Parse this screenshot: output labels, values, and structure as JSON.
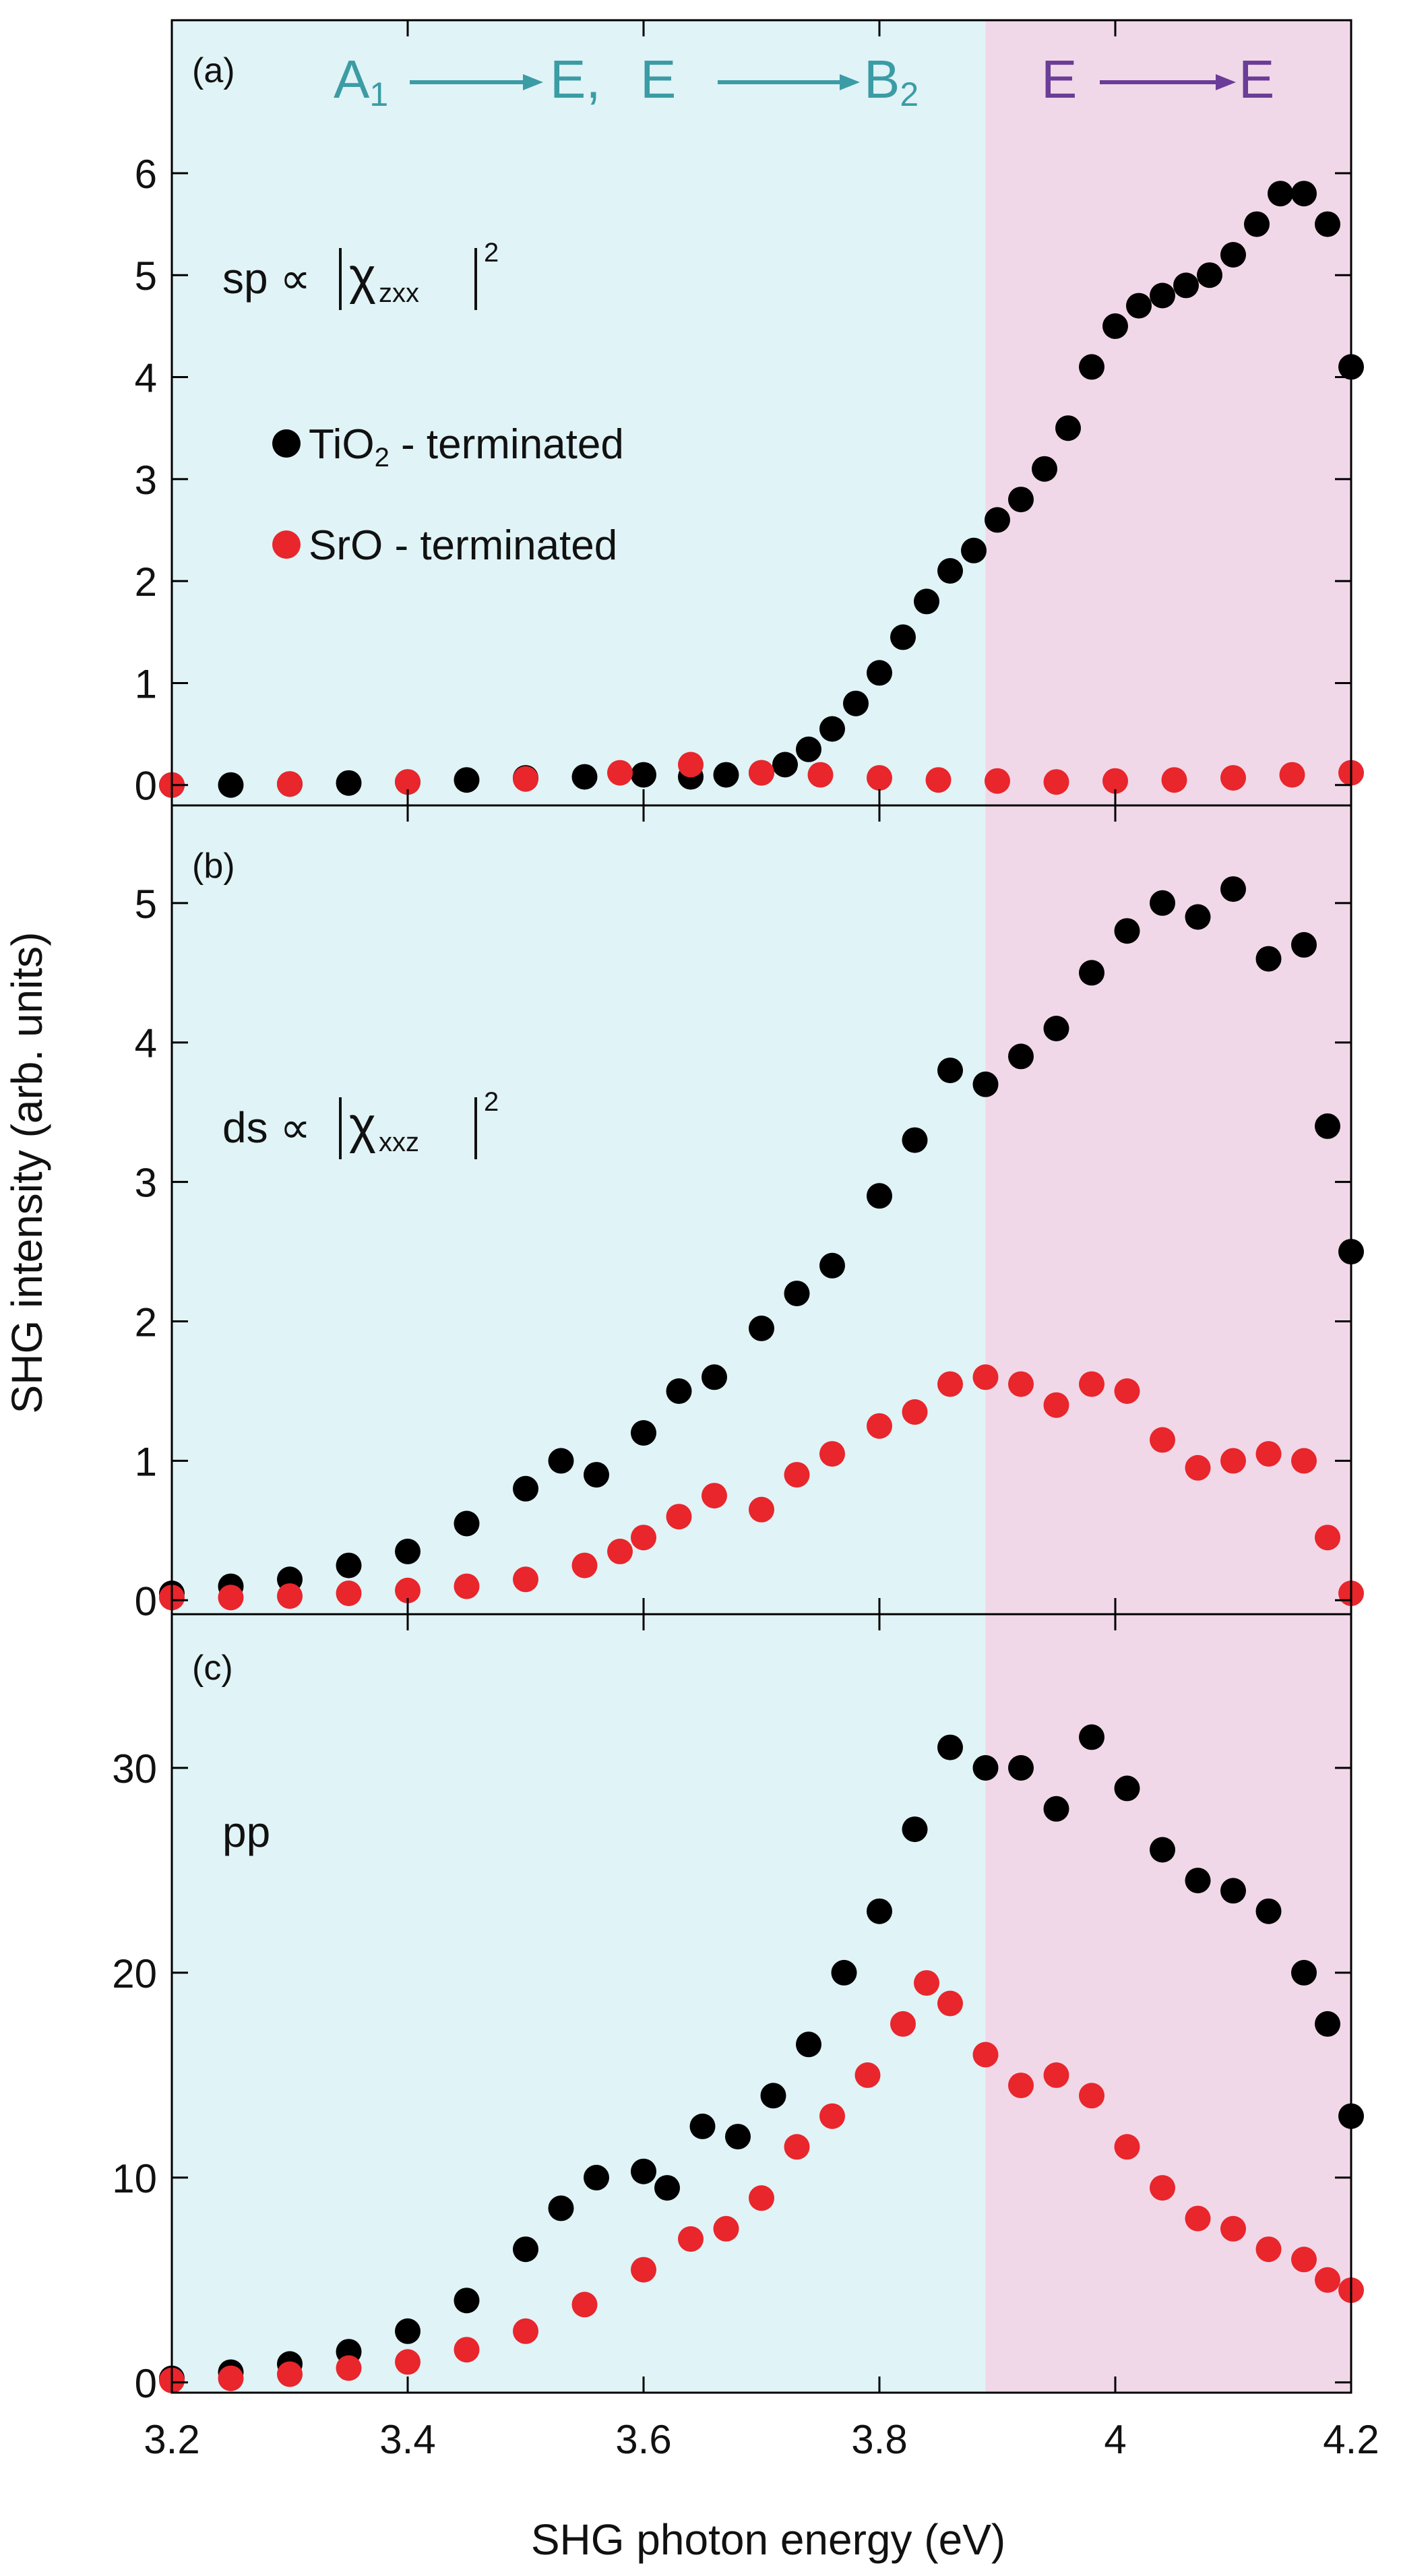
{
  "colors": {
    "region_low": "#e0f3f6",
    "region_high": "#f1d8e8",
    "series_tio2": "#000000",
    "series_sro": "#e8262c",
    "transition_low": "#3b9ca5",
    "transition_high": "#6a3d98"
  },
  "figure": {
    "xlabel": "SHG photon energy (eV)",
    "ylabel": "SHG intensity (arb. units)",
    "xlim": [
      3.2,
      4.2
    ],
    "xticks": [
      "3.2",
      "3.4",
      "3.6",
      "3.8",
      "4",
      "4.2"
    ],
    "region_boundary_ev": 3.89,
    "transitions": {
      "t1_from": "A",
      "t1_from_sub": "1",
      "t1_to": "E,",
      "t2_from": "E",
      "t2_to": "B",
      "t2_to_sub": "2",
      "t3_from": "E",
      "t3_to": "E"
    },
    "legend": {
      "tio2_label": "TiO",
      "tio2_sub": "2",
      "tio2_suffix": " - terminated",
      "sro_label": "SrO  - terminated"
    }
  },
  "panels": {
    "a": {
      "tag": "(a)",
      "formula_prefix": "sp ∝",
      "chi": "χ",
      "subscript": "zxx",
      "exponent": "2",
      "yticks": [
        "0",
        "1",
        "2",
        "3",
        "4",
        "5",
        "6"
      ]
    },
    "b": {
      "tag": "(b)",
      "formula_prefix": "ds ∝",
      "chi": "χ",
      "subscript": "xxz",
      "exponent": "2",
      "yticks": [
        "0",
        "1",
        "2",
        "3",
        "4",
        "5"
      ]
    },
    "c": {
      "tag": "(c)",
      "label": "pp",
      "yticks": [
        "0",
        "10",
        "20",
        "30"
      ]
    }
  },
  "chart_data": [
    {
      "type": "scatter",
      "panel": "a",
      "xlim": [
        3.2,
        4.2
      ],
      "ylim": [
        -0.2,
        7.5
      ],
      "series": [
        {
          "name": "TiO2 - terminated",
          "x": [
            3.2,
            3.25,
            3.3,
            3.35,
            3.4,
            3.45,
            3.5,
            3.55,
            3.6,
            3.64,
            3.67,
            3.7,
            3.72,
            3.74,
            3.76,
            3.78,
            3.8,
            3.82,
            3.84,
            3.86,
            3.88,
            3.9,
            3.92,
            3.94,
            3.96,
            3.98,
            4.0,
            4.02,
            4.04,
            4.06,
            4.08,
            4.1,
            4.12,
            4.14,
            4.16,
            4.18,
            4.2
          ],
          "y": [
            0,
            0,
            0.01,
            0.02,
            0.03,
            0.05,
            0.07,
            0.08,
            0.1,
            0.08,
            0.1,
            0.12,
            0.2,
            0.35,
            0.55,
            0.8,
            1.1,
            1.45,
            1.8,
            2.1,
            2.3,
            2.6,
            2.8,
            3.1,
            3.5,
            4.1,
            4.5,
            4.7,
            4.8,
            4.9,
            5.0,
            5.2,
            5.5,
            5.8,
            5.8,
            5.5,
            4.1
          ]
        },
        {
          "name": "SrO - terminated",
          "x": [
            3.2,
            3.3,
            3.4,
            3.5,
            3.58,
            3.64,
            3.7,
            3.75,
            3.8,
            3.85,
            3.9,
            3.95,
            4.0,
            4.05,
            4.1,
            4.15,
            4.2
          ],
          "y": [
            0,
            0.01,
            0.03,
            0.06,
            0.12,
            0.2,
            0.12,
            0.1,
            0.07,
            0.05,
            0.04,
            0.03,
            0.04,
            0.05,
            0.07,
            0.1,
            0.12
          ]
        }
      ]
    },
    {
      "type": "scatter",
      "panel": "b",
      "xlim": [
        3.2,
        4.2
      ],
      "ylim": [
        -0.1,
        5.7
      ],
      "series": [
        {
          "name": "TiO2 - terminated",
          "x": [
            3.2,
            3.25,
            3.3,
            3.35,
            3.4,
            3.45,
            3.5,
            3.53,
            3.56,
            3.6,
            3.63,
            3.66,
            3.7,
            3.73,
            3.76,
            3.8,
            3.83,
            3.86,
            3.89,
            3.92,
            3.95,
            3.98,
            4.01,
            4.04,
            4.07,
            4.1,
            4.13,
            4.16,
            4.18,
            4.2
          ],
          "y": [
            0.05,
            0.1,
            0.15,
            0.25,
            0.35,
            0.55,
            0.8,
            1.0,
            0.9,
            1.2,
            1.5,
            1.6,
            1.95,
            2.2,
            2.4,
            2.9,
            3.3,
            3.8,
            3.7,
            3.9,
            4.1,
            4.5,
            4.8,
            5.0,
            4.9,
            5.1,
            4.6,
            4.7,
            3.4,
            2.5
          ]
        },
        {
          "name": "SrO - terminated",
          "x": [
            3.2,
            3.25,
            3.3,
            3.35,
            3.4,
            3.45,
            3.5,
            3.55,
            3.58,
            3.6,
            3.63,
            3.66,
            3.7,
            3.73,
            3.76,
            3.8,
            3.83,
            3.86,
            3.89,
            3.92,
            3.95,
            3.98,
            4.01,
            4.04,
            4.07,
            4.1,
            4.13,
            4.16,
            4.18,
            4.2
          ],
          "y": [
            0.02,
            0.02,
            0.03,
            0.05,
            0.07,
            0.1,
            0.15,
            0.25,
            0.35,
            0.45,
            0.6,
            0.75,
            0.65,
            0.9,
            1.05,
            1.25,
            1.35,
            1.55,
            1.6,
            1.55,
            1.4,
            1.55,
            1.5,
            1.15,
            0.95,
            1.0,
            1.05,
            1.0,
            0.45,
            0.05
          ]
        }
      ]
    },
    {
      "type": "scatter",
      "panel": "c",
      "xlim": [
        3.2,
        4.2
      ],
      "ylim": [
        -0.5,
        37.5
      ],
      "series": [
        {
          "name": "TiO2 - terminated",
          "x": [
            3.2,
            3.25,
            3.3,
            3.35,
            3.4,
            3.45,
            3.5,
            3.53,
            3.56,
            3.6,
            3.62,
            3.65,
            3.68,
            3.71,
            3.74,
            3.77,
            3.8,
            3.83,
            3.86,
            3.89,
            3.92,
            3.95,
            3.98,
            4.01,
            4.04,
            4.07,
            4.1,
            4.13,
            4.16,
            4.18,
            4.2
          ],
          "y": [
            0.2,
            0.5,
            0.9,
            1.5,
            2.5,
            4.0,
            6.5,
            8.5,
            10,
            10.3,
            9.5,
            12.5,
            12.0,
            14.0,
            16.5,
            20.0,
            23.0,
            27.0,
            31.0,
            30.0,
            30.0,
            28.0,
            31.5,
            29.0,
            26.0,
            24.5,
            24.0,
            23.0,
            20.0,
            17.5,
            13.0
          ]
        },
        {
          "name": "SrO - terminated",
          "x": [
            3.2,
            3.25,
            3.3,
            3.35,
            3.4,
            3.45,
            3.5,
            3.55,
            3.6,
            3.64,
            3.67,
            3.7,
            3.73,
            3.76,
            3.79,
            3.82,
            3.84,
            3.86,
            3.89,
            3.92,
            3.95,
            3.98,
            4.01,
            4.04,
            4.07,
            4.1,
            4.13,
            4.16,
            4.18,
            4.2
          ],
          "y": [
            0.1,
            0.2,
            0.4,
            0.7,
            1.0,
            1.6,
            2.5,
            3.8,
            5.5,
            7.0,
            7.5,
            9.0,
            11.5,
            13.0,
            15.0,
            17.5,
            19.5,
            18.5,
            16.0,
            14.5,
            15.0,
            14.0,
            11.5,
            9.5,
            8.0,
            7.5,
            6.5,
            6.0,
            5.0,
            4.5
          ]
        }
      ]
    }
  ]
}
